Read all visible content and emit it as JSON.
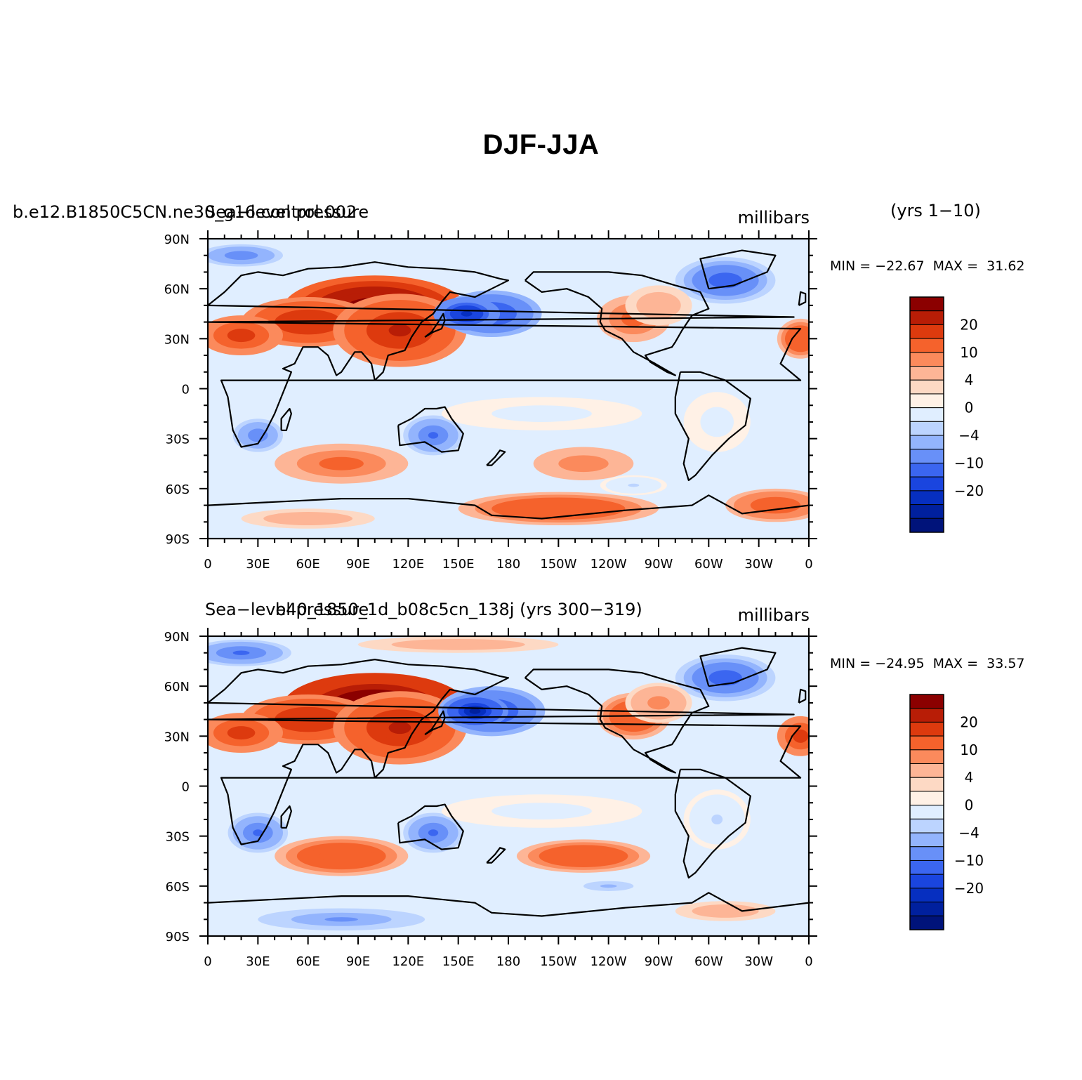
{
  "title": "DJF-JJA",
  "panels": [
    {
      "case_name": "b.e12.B1850C5CN.ne30_g16.control.002",
      "variable": "Sea−level pressure",
      "years": "(yrs  1−10)",
      "units": "millibars",
      "min_label": "MIN",
      "min_value": "−22.67",
      "max_label": "MAX",
      "max_value": "31.62"
    },
    {
      "case_name": "b40_1850_1d_b08c5cn_138j  (yrs  300−319)",
      "variable": "Sea−level pressure",
      "units": "millibars",
      "min_label": "MIN",
      "min_value": "−24.95",
      "max_label": "MAX",
      "max_value": "33.57"
    }
  ],
  "axes": {
    "lat_labels": [
      "90N",
      "60N",
      "30N",
      "0",
      "30S",
      "60S",
      "90S"
    ],
    "lon_labels": [
      "0",
      "30E",
      "60E",
      "90E",
      "120E",
      "150E",
      "180",
      "150W",
      "120W",
      "90W",
      "60W",
      "30W",
      "0"
    ]
  },
  "colorbar": {
    "labels": [
      "20",
      "10",
      "4",
      "0",
      "−4",
      "−10",
      "−20"
    ],
    "colors": [
      "#8b0000",
      "#b81d06",
      "#dd3a0e",
      "#f5622c",
      "#fb8a5c",
      "#fdb596",
      "#fdd9c4",
      "#fff1e6",
      "#e0eeff",
      "#bcd4ff",
      "#93b4fd",
      "#6890f8",
      "#3b66f0",
      "#1a45df",
      "#062fc0",
      "#00209e",
      "#00137a"
    ]
  },
  "chart_data": {
    "type": "heatmap",
    "title": "DJF-JJA",
    "units": "millibars",
    "variable": "Sea−level pressure",
    "x_ticks": [
      "0",
      "30E",
      "60E",
      "90E",
      "120E",
      "150E",
      "180",
      "150W",
      "120W",
      "90W",
      "60W",
      "30W",
      "0"
    ],
    "y_ticks": [
      "90N",
      "60N",
      "30N",
      "0",
      "30S",
      "60S",
      "90S"
    ],
    "contour_levels": [
      -28,
      -24,
      -20,
      -16,
      -12,
      -10,
      -8,
      -6,
      -4,
      -2,
      0,
      2,
      4,
      6,
      8,
      10,
      12,
      16,
      20,
      24,
      28
    ],
    "panels": [
      {
        "name": "b.e12.B1850C5CN.ne30_g16.control.002",
        "years": "(yrs  1−10)",
        "min": -22.67,
        "max": 31.62
      },
      {
        "name": "b40_1850_1d_b08c5cn_138j",
        "years": "(yrs  300−319)",
        "min": -24.95,
        "max": 33.57
      }
    ]
  }
}
